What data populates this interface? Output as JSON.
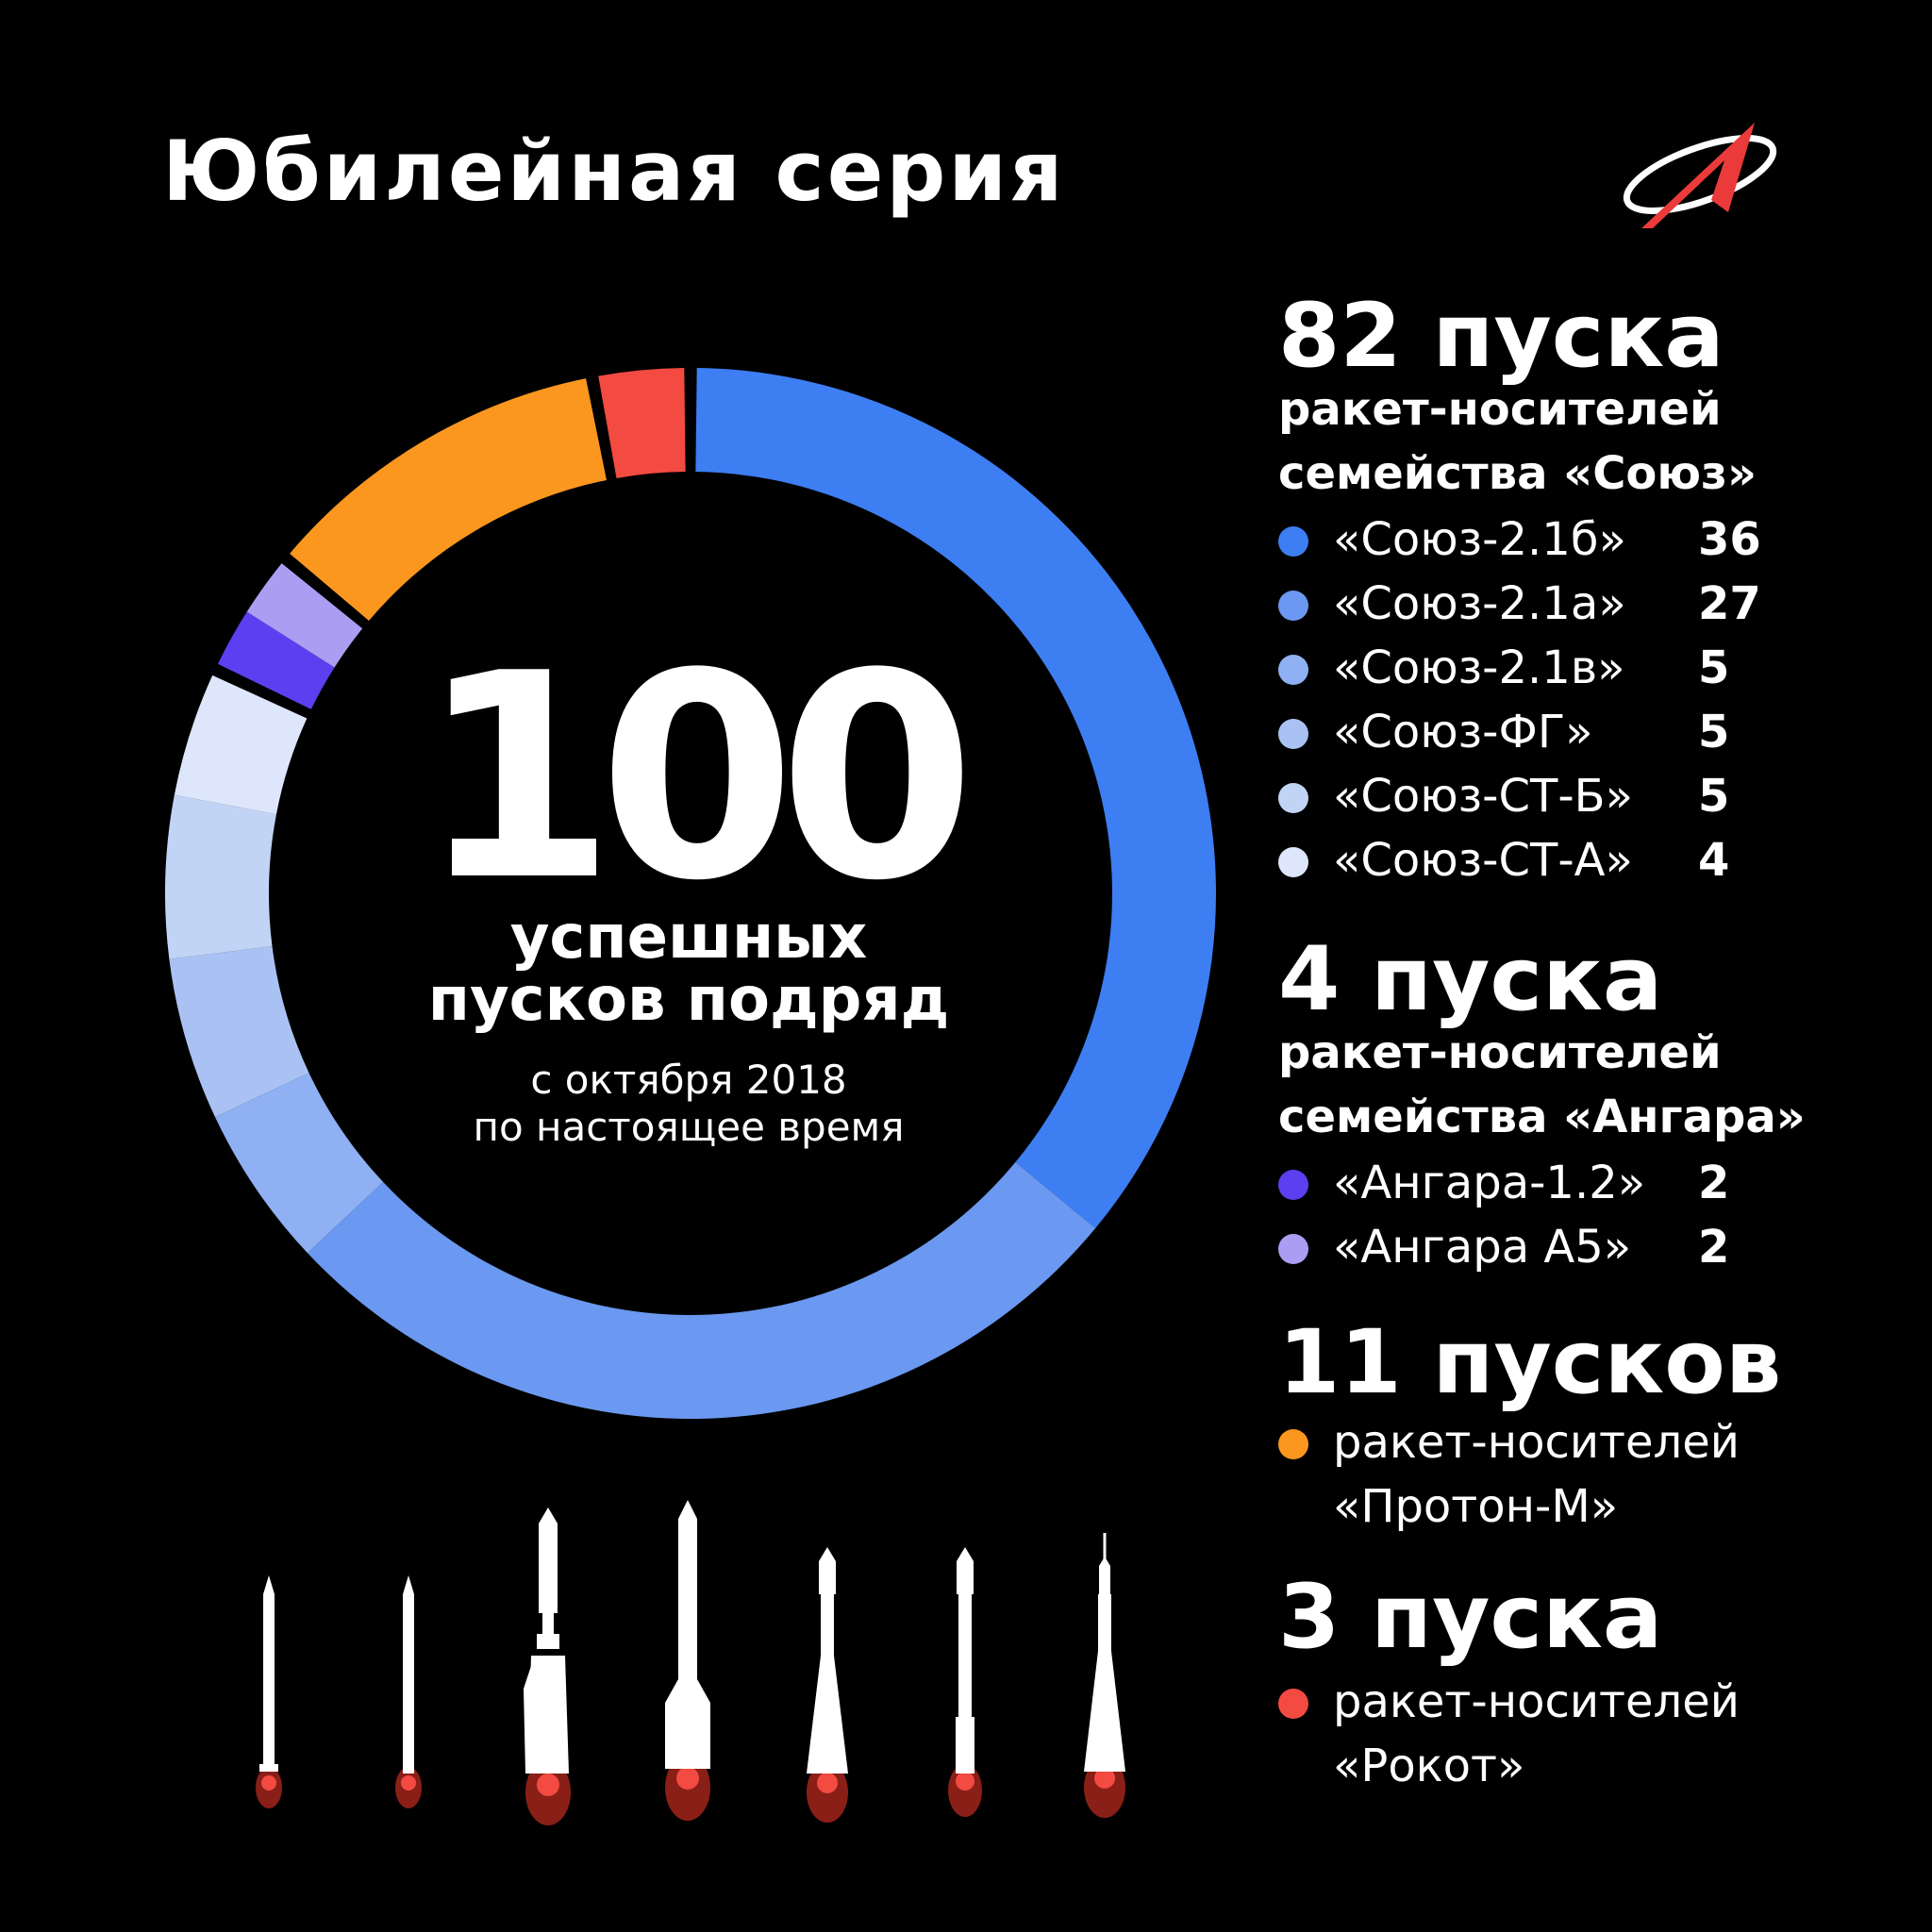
{
  "title": "Юбилейная серия",
  "center": {
    "number": "100",
    "line1": "успешных",
    "line2": "пусков подряд",
    "line3": "с октября 2018",
    "line4": "по настоящее время"
  },
  "groups": {
    "soyuz": {
      "headline": "82 пуска",
      "sub1": "ракет-носителей",
      "sub2": "семейства «Союз»",
      "items": [
        {
          "name": "«Союз-2.1б»",
          "value": "36"
        },
        {
          "name": "«Союз-2.1а»",
          "value": "27"
        },
        {
          "name": "«Союз-2.1в»",
          "value": "5"
        },
        {
          "name": "«Союз-ФГ»",
          "value": "5"
        },
        {
          "name": "«Союз-СТ-Б»",
          "value": "5"
        },
        {
          "name": "«Союз-СТ-А»",
          "value": "4"
        }
      ]
    },
    "angara": {
      "headline": "4 пуска",
      "sub1": "ракет-носителей",
      "sub2": "семейства «Ангара»",
      "items": [
        {
          "name": "«Ангара-1.2»",
          "value": "2"
        },
        {
          "name": "«Ангара А5»",
          "value": "2"
        }
      ]
    },
    "proton": {
      "headline": "11 пусков",
      "line1": "ракет-носителей",
      "line2": "«Протон-М»"
    },
    "rokot": {
      "headline": "3 пуска",
      "line1": "ракет-носителей",
      "line2": "«Рокот»"
    }
  },
  "chart_data": {
    "type": "pie",
    "donut": true,
    "total": 100,
    "start": "12 o'clock",
    "direction": "clockwise",
    "categories": [
      "«Союз-2.1б»",
      "«Союз-2.1а»",
      "«Союз-2.1в»",
      "«Союз-ФГ»",
      "«Союз-СТ-Б»",
      "«Союз-СТ-А»",
      "«Ангара-1.2»",
      "«Ангара А5»",
      "«Протон-М»",
      "«Рокот»"
    ],
    "values": [
      36,
      27,
      5,
      5,
      5,
      4,
      2,
      2,
      11,
      3
    ],
    "colors": [
      "#3d7ef2",
      "#6b98f0",
      "#8fb0f3",
      "#aac2f3",
      "#c2d4f6",
      "#dde6fb",
      "#5b3ff0",
      "#ab9df2",
      "#fb971f",
      "#f34a42"
    ],
    "family_gaps_after": [
      "«Союз-СТ-А»",
      "«Ангара А5»",
      "«Протон-М»",
      "«Рокот»"
    ]
  },
  "rockets": [
    "rocket-1",
    "rocket-2",
    "rocket-3",
    "rocket-4",
    "rocket-5",
    "rocket-6",
    "rocket-7"
  ]
}
